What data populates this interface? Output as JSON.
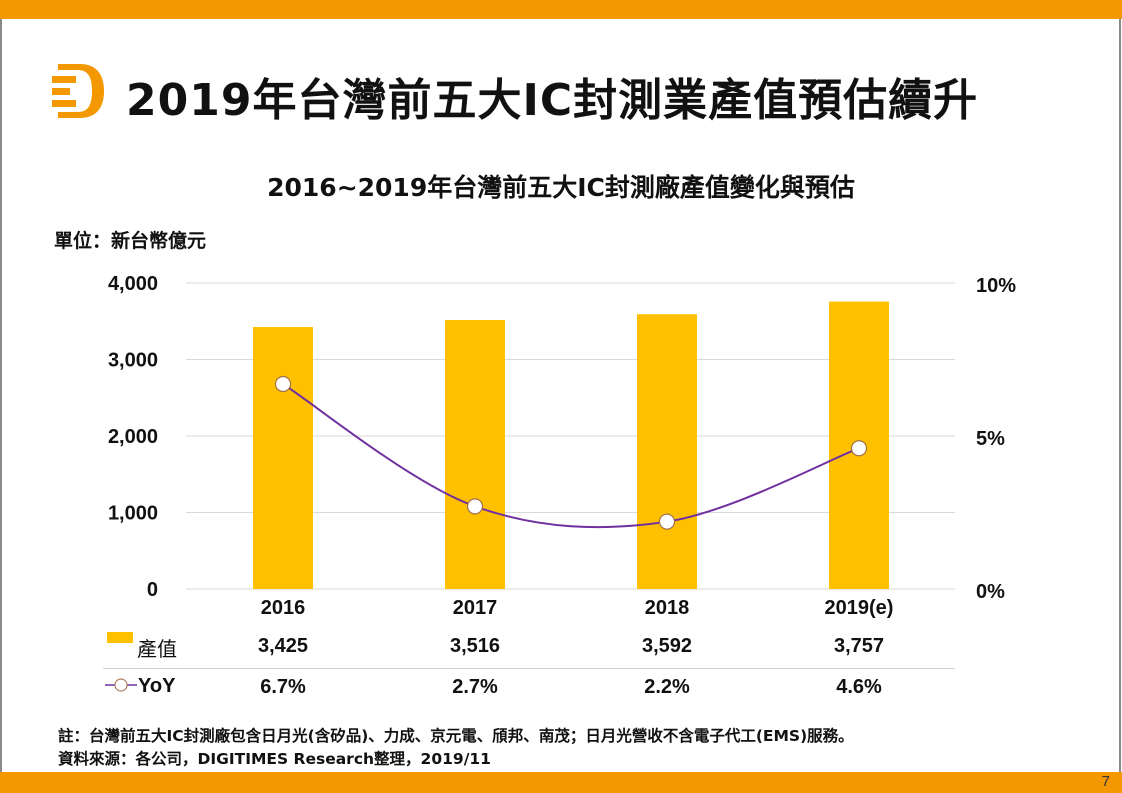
{
  "slide": {
    "title": "2019年台灣前五大IC封測業產值預估續升",
    "page_number": "7",
    "logo_icon": "digitimes-d-logo-icon",
    "accent_color": "#F39800"
  },
  "chart_data": {
    "type": "bar",
    "title": "2016~2019年台灣前五大IC封測廠產值變化與預估",
    "unit_label": "單位：新台幣億元",
    "categories": [
      "2016",
      "2017",
      "2018",
      "2019(e)"
    ],
    "series": [
      {
        "name": "產值",
        "type": "bar",
        "axis": "left",
        "color": "#FFC000",
        "values": [
          3425,
          3516,
          3592,
          3757
        ],
        "labels": [
          "3,425",
          "3,516",
          "3,592",
          "3,757"
        ]
      },
      {
        "name": "YoY",
        "type": "line",
        "axis": "right",
        "color": "#7030A0",
        "values": [
          6.7,
          2.7,
          2.2,
          4.6
        ],
        "labels": [
          "6.7%",
          "2.7%",
          "2.2%",
          "4.6%"
        ]
      }
    ],
    "left_axis": {
      "ylim": [
        0,
        4000
      ],
      "ticks": [
        0,
        1000,
        2000,
        3000,
        4000
      ],
      "tick_labels": [
        "0",
        "1,000",
        "2,000",
        "3,000",
        "4,000"
      ]
    },
    "right_axis": {
      "ylim": [
        0,
        10
      ],
      "ticks": [
        0,
        5,
        10
      ],
      "tick_labels": [
        "0%",
        "5%",
        "10%"
      ]
    },
    "grid": true,
    "legend": "data-table-bottom"
  },
  "notes": {
    "note": "註：台灣前五大IC封測廠包含日月光(含矽品)、力成、京元電、頎邦、南茂；日月光營收不含電子代工(EMS)服務。",
    "source": "資料來源：各公司，DIGITIMES Research整理，2019/11"
  }
}
